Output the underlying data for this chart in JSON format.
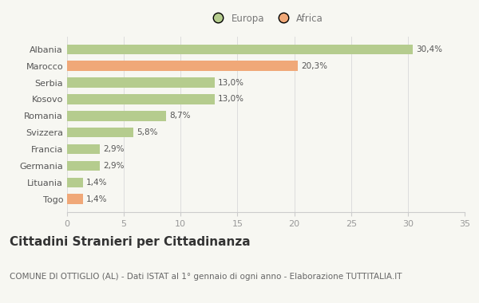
{
  "categories": [
    "Albania",
    "Marocco",
    "Serbia",
    "Kosovo",
    "Romania",
    "Svizzera",
    "Francia",
    "Germania",
    "Lituania",
    "Togo"
  ],
  "values": [
    30.4,
    20.3,
    13.0,
    13.0,
    8.7,
    5.8,
    2.9,
    2.9,
    1.4,
    1.4
  ],
  "labels": [
    "30,4%",
    "20,3%",
    "13,0%",
    "13,0%",
    "8,7%",
    "5,8%",
    "2,9%",
    "2,9%",
    "1,4%",
    "1,4%"
  ],
  "continents": [
    "Europa",
    "Africa",
    "Europa",
    "Europa",
    "Europa",
    "Europa",
    "Europa",
    "Europa",
    "Europa",
    "Africa"
  ],
  "color_europa": "#b5cc8e",
  "color_africa": "#f0a878",
  "background_color": "#f7f7f2",
  "xlim": [
    0,
    35
  ],
  "xticks": [
    0,
    5,
    10,
    15,
    20,
    25,
    30,
    35
  ],
  "title": "Cittadini Stranieri per Cittadinanza",
  "subtitle": "COMUNE DI OTTIGLIO (AL) - Dati ISTAT al 1° gennaio di ogni anno - Elaborazione TUTTITALIA.IT",
  "legend_europa": "Europa",
  "legend_africa": "Africa",
  "title_fontsize": 11,
  "subtitle_fontsize": 7.5,
  "bar_label_fontsize": 7.5,
  "tick_fontsize": 8,
  "legend_fontsize": 8.5
}
